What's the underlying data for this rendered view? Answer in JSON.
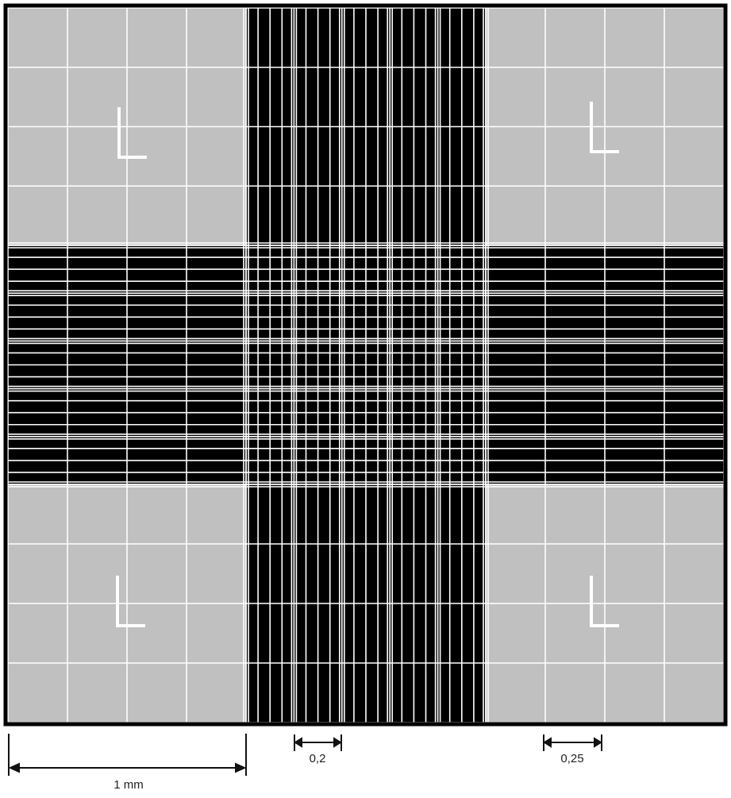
{
  "diagram": {
    "colors": {
      "corner_fill": "#c0c0c0",
      "band_fill": "#000000",
      "grid_line": "#ffffff",
      "border": "#000000"
    },
    "corner_mark": "L",
    "scale_labels": {
      "one_mm": "1 mm",
      "zero_two": "0,2",
      "zero_twenty_five": "0,25"
    }
  }
}
